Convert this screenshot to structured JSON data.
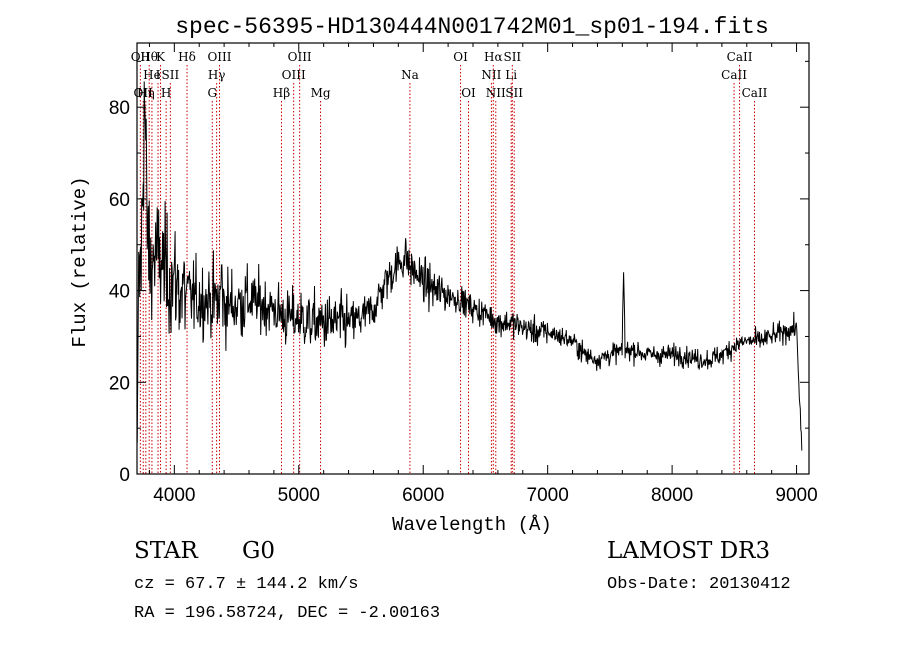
{
  "chart_data": {
    "type": "line",
    "title": "spec-56395-HD130444N001742M01_sp01-194.fits",
    "xlabel": "Wavelength (Å)",
    "ylabel": "Flux (relative)",
    "xlim": [
      3700,
      9100
    ],
    "ylim": [
      0,
      94
    ],
    "xticks": [
      4000,
      5000,
      6000,
      7000,
      8000,
      9000
    ],
    "yticks": [
      0,
      20,
      40,
      60,
      80
    ],
    "line_color": "#000000",
    "marker_color": "#cc0000",
    "spectrum_anchors": [
      [
        3700,
        0
      ],
      [
        3710,
        34
      ],
      [
        3740,
        52
      ],
      [
        3760,
        85
      ],
      [
        3780,
        55
      ],
      [
        3800,
        45
      ],
      [
        3850,
        48
      ],
      [
        3900,
        46
      ],
      [
        3950,
        43
      ],
      [
        4000,
        42
      ],
      [
        4050,
        40
      ],
      [
        4100,
        39
      ],
      [
        4200,
        38
      ],
      [
        4300,
        38
      ],
      [
        4400,
        37
      ],
      [
        4500,
        37
      ],
      [
        4600,
        38
      ],
      [
        4700,
        37
      ],
      [
        4800,
        36
      ],
      [
        4900,
        34
      ],
      [
        5000,
        34
      ],
      [
        5100,
        33
      ],
      [
        5200,
        33
      ],
      [
        5300,
        33
      ],
      [
        5400,
        33
      ],
      [
        5500,
        34
      ],
      [
        5600,
        36
      ],
      [
        5700,
        42
      ],
      [
        5800,
        46
      ],
      [
        5850,
        47
      ],
      [
        5900,
        45
      ],
      [
        6000,
        42
      ],
      [
        6100,
        40
      ],
      [
        6200,
        39
      ],
      [
        6300,
        38
      ],
      [
        6400,
        36
      ],
      [
        6500,
        35
      ],
      [
        6600,
        33
      ],
      [
        6700,
        33
      ],
      [
        6800,
        32
      ],
      [
        6900,
        31
      ],
      [
        7000,
        31
      ],
      [
        7100,
        30
      ],
      [
        7200,
        29
      ],
      [
        7300,
        26
      ],
      [
        7400,
        25
      ],
      [
        7500,
        26
      ],
      [
        7600,
        27
      ],
      [
        7700,
        27
      ],
      [
        7800,
        26
      ],
      [
        7900,
        26
      ],
      [
        8000,
        26
      ],
      [
        8100,
        26
      ],
      [
        8200,
        25
      ],
      [
        8300,
        25
      ],
      [
        8400,
        26
      ],
      [
        8500,
        28
      ],
      [
        8600,
        29
      ],
      [
        8700,
        29
      ],
      [
        8800,
        30
      ],
      [
        8900,
        31
      ],
      [
        9000,
        32
      ],
      [
        9050,
        0
      ]
    ],
    "spikes": [
      {
        "x": 7610,
        "y": 44
      },
      {
        "x": 5860,
        "y": 53
      },
      {
        "x": 4380,
        "y": 48
      }
    ],
    "line_markers": [
      {
        "x": 3727,
        "row": 1,
        "label": "OII"
      },
      {
        "x": 3750,
        "row": 3,
        "label": "OII"
      },
      {
        "x": 3771,
        "row": 3,
        "label": "Hη"
      },
      {
        "x": 3798,
        "row": 1,
        "label": "Hθ"
      },
      {
        "x": 3820,
        "row": 2,
        "label": "He"
      },
      {
        "x": 3869,
        "row": 2,
        "label": "I"
      },
      {
        "x": 3889,
        "row": 1,
        "label": "K"
      },
      {
        "x": 3934,
        "row": 3,
        "label": "H"
      },
      {
        "x": 3968,
        "row": 2,
        "label": "SII"
      },
      {
        "x": 4102,
        "row": 1,
        "label": "Hδ"
      },
      {
        "x": 4305,
        "row": 3,
        "label": "G"
      },
      {
        "x": 4340,
        "row": 2,
        "label": "Hγ"
      },
      {
        "x": 4363,
        "row": 1,
        "label": "OIII"
      },
      {
        "x": 4861,
        "row": 3,
        "label": "Hβ"
      },
      {
        "x": 4959,
        "row": 2,
        "label": "OIII"
      },
      {
        "x": 5007,
        "row": 1,
        "label": "OIII"
      },
      {
        "x": 5175,
        "row": 3,
        "label": "Mg"
      },
      {
        "x": 5893,
        "row": 2,
        "label": "Na"
      },
      {
        "x": 6300,
        "row": 1,
        "label": "OI"
      },
      {
        "x": 6364,
        "row": 3,
        "label": "OI"
      },
      {
        "x": 6548,
        "row": 2,
        "label": "NII"
      },
      {
        "x": 6563,
        "row": 1,
        "label": "Hα"
      },
      {
        "x": 6583,
        "row": 3,
        "label": "NII"
      },
      {
        "x": 6707,
        "row": 2,
        "label": "Li"
      },
      {
        "x": 6716,
        "row": 1,
        "label": "SII"
      },
      {
        "x": 6731,
        "row": 3,
        "label": "SII"
      },
      {
        "x": 8498,
        "row": 2,
        "label": "CaII"
      },
      {
        "x": 8542,
        "row": 1,
        "label": "CaII"
      },
      {
        "x": 8662,
        "row": 3,
        "label": "CaII"
      }
    ]
  },
  "footer": {
    "object_class": "STAR",
    "subclass": "G0",
    "survey": "LAMOST DR3",
    "cz_line": "cz = 67.7 ± 144.2 km/s",
    "obs_date": "Obs-Date: 20130412",
    "coords_line": "RA = 196.58724, DEC =  -2.00163"
  }
}
